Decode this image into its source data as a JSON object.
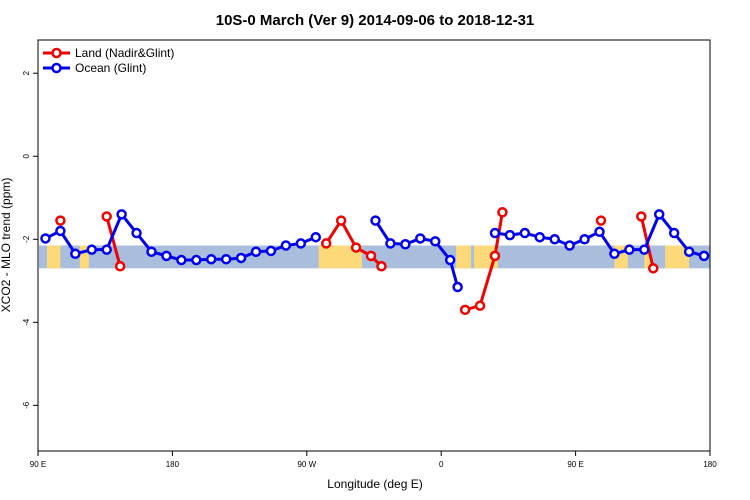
{
  "chart_data": {
    "type": "line",
    "title": "10S-0 March (Ver 9)   2014-09-06 to 2018-12-31",
    "xlabel": "Longitude (deg E)",
    "ylabel": "XCO2 - MLO trend (ppm)",
    "xlim": [
      90,
      540
    ],
    "ylim": [
      -7.1,
      2.8
    ],
    "x_ticks": [
      {
        "value": 90,
        "label": "90 E"
      },
      {
        "value": 180,
        "label": "180"
      },
      {
        "value": 270,
        "label": "90 W"
      },
      {
        "value": 360,
        "label": "0"
      },
      {
        "value": 450,
        "label": "90 E"
      },
      {
        "value": 540,
        "label": "180"
      }
    ],
    "y_ticks": [
      {
        "value": -6,
        "label": "-6"
      },
      {
        "value": -4,
        "label": "-4"
      },
      {
        "value": -2,
        "label": "-2"
      },
      {
        "value": 0,
        "label": "0"
      },
      {
        "value": 2,
        "label": "2"
      }
    ],
    "map_band": {
      "ymin": -2.7,
      "ymax": -2.15,
      "ocean_color": "#a8bedc",
      "land_color": "#fdd97a"
    },
    "land_spans": [
      [
        96,
        105
      ],
      [
        118,
        124
      ],
      [
        278,
        307
      ],
      [
        370,
        380
      ],
      [
        382,
        398
      ],
      [
        476,
        485
      ],
      [
        496,
        500
      ],
      [
        510,
        526
      ]
    ],
    "series": [
      {
        "name": "Land (Nadir&Glint)",
        "color": "#ee0000",
        "segments": [
          [
            [
              105,
              -1.55
            ]
          ],
          [
            [
              136,
              -1.45
            ],
            [
              145,
              -2.65
            ]
          ],
          [
            [
              283,
              -2.1
            ],
            [
              293,
              -1.55
            ],
            [
              303,
              -2.2
            ],
            [
              313,
              -2.4
            ],
            [
              320,
              -2.65
            ]
          ],
          [
            [
              376,
              -3.7
            ],
            [
              386,
              -3.6
            ],
            [
              396,
              -2.4
            ],
            [
              401,
              -1.35
            ]
          ],
          [
            [
              467,
              -1.55
            ]
          ],
          [
            [
              494,
              -1.45
            ],
            [
              502,
              -2.7
            ]
          ]
        ]
      },
      {
        "name": "Ocean (Glint)",
        "color": "#0000ee",
        "segments": [
          [
            [
              95,
              -1.98
            ],
            [
              105,
              -1.8
            ],
            [
              115,
              -2.35
            ],
            [
              126,
              -2.25
            ],
            [
              136,
              -2.25
            ],
            [
              146,
              -1.4
            ],
            [
              156,
              -1.85
            ],
            [
              166,
              -2.3
            ],
            [
              176,
              -2.4
            ],
            [
              186,
              -2.5
            ],
            [
              196,
              -2.5
            ],
            [
              206,
              -2.48
            ],
            [
              216,
              -2.48
            ],
            [
              226,
              -2.45
            ],
            [
              236,
              -2.3
            ],
            [
              246,
              -2.28
            ],
            [
              256,
              -2.15
            ],
            [
              266,
              -2.1
            ],
            [
              276,
              -1.95
            ]
          ],
          [
            [
              316,
              -1.55
            ],
            [
              326,
              -2.1
            ],
            [
              336,
              -2.12
            ],
            [
              346,
              -1.98
            ],
            [
              356,
              -2.05
            ],
            [
              366,
              -2.5
            ],
            [
              371,
              -3.15
            ]
          ],
          [
            [
              396,
              -1.85
            ],
            [
              406,
              -1.9
            ],
            [
              416,
              -1.85
            ],
            [
              426,
              -1.95
            ],
            [
              436,
              -2.0
            ],
            [
              446,
              -2.15
            ],
            [
              456,
              -2.0
            ],
            [
              466,
              -1.82
            ],
            [
              476,
              -2.35
            ],
            [
              486,
              -2.25
            ],
            [
              496,
              -2.25
            ],
            [
              506,
              -1.4
            ],
            [
              516,
              -1.85
            ],
            [
              526,
              -2.3
            ],
            [
              536,
              -2.4
            ]
          ]
        ]
      }
    ],
    "legend": {
      "placement": "top-left",
      "entries": [
        "Land (Nadir&Glint)",
        "Ocean (Glint)"
      ]
    }
  }
}
